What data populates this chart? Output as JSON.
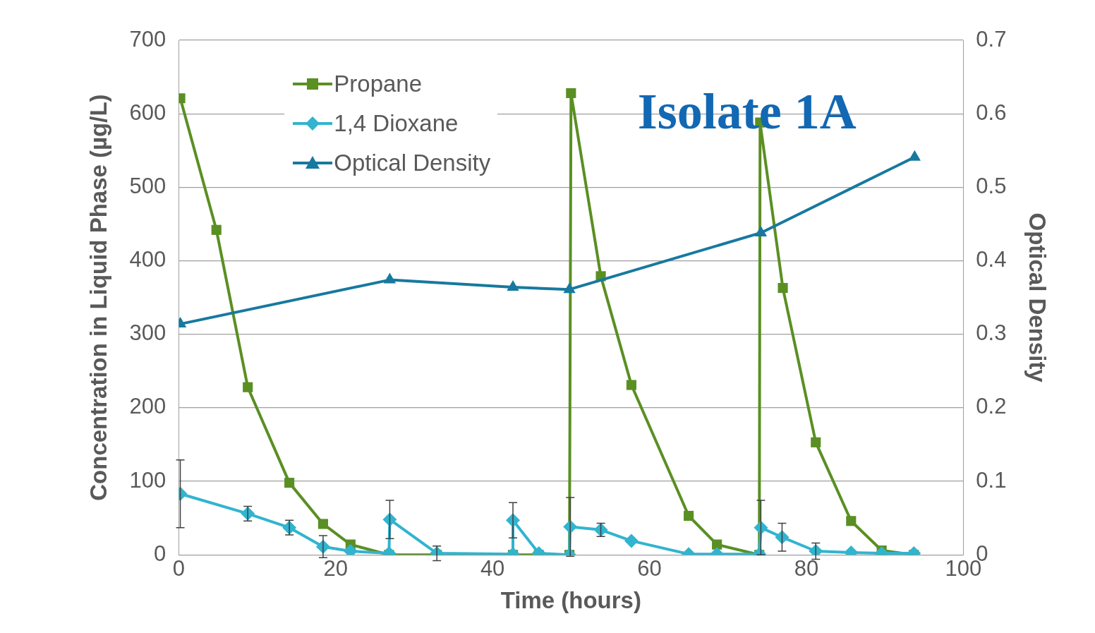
{
  "chart_data": {
    "type": "line",
    "xlabel": "Time (hours)",
    "ylabel": "Concentration in Liquid Phase (µg/L)",
    "y2label": "Optical Density",
    "annotations": [
      "Isolate 1A"
    ],
    "xlim": [
      0,
      100
    ],
    "xticks": [
      0,
      20,
      40,
      60,
      80,
      100
    ],
    "ylim": [
      0,
      700
    ],
    "yticks": [
      0,
      100,
      200,
      300,
      400,
      500,
      600,
      700
    ],
    "y2lim": [
      0,
      0.7
    ],
    "y2ticks": [
      0,
      0.1,
      0.2,
      0.3,
      0.4,
      0.5,
      0.6,
      0.7
    ],
    "grid": "y",
    "legend": "top left",
    "line_style": "solid",
    "series": [
      {
        "name": "Propane",
        "color": "#5a8f23",
        "marker": "square",
        "x": [
          0.2,
          4.8,
          8.8,
          14.1,
          18.4,
          21.9,
          26.8,
          32.9,
          42.6,
          45.9,
          49.8,
          50,
          53.8,
          57.7,
          65,
          68.6,
          74,
          74.1,
          77,
          81.2,
          85.7,
          89.6,
          93.7
        ],
        "values": [
          621,
          442,
          228,
          98,
          42,
          14,
          0,
          0,
          0,
          0,
          0,
          628,
          379,
          231,
          53,
          14,
          0,
          588,
          363,
          153,
          46,
          6,
          0
        ]
      },
      {
        "name": "1,4 Dioxane",
        "color": "#31b4cf",
        "marker": "diamond",
        "x": [
          0.2,
          8.8,
          14.1,
          18.4,
          21.9,
          26.8,
          26.9,
          32.9,
          42.6,
          42.6,
          45.9,
          49.8,
          49.9,
          53.8,
          57.7,
          65,
          68.6,
          74,
          74.2,
          76.9,
          81.2,
          85.7,
          89.6,
          93.7
        ],
        "values": [
          83,
          56,
          37,
          11,
          5,
          2,
          48,
          2,
          1,
          47,
          2,
          0,
          38,
          34,
          19,
          1,
          1,
          1,
          37,
          24,
          5,
          3,
          2,
          2
        ],
        "errors": [
          46,
          10,
          10,
          15,
          null,
          null,
          26,
          10,
          null,
          24,
          null,
          null,
          40,
          9,
          null,
          null,
          null,
          null,
          37,
          19,
          11,
          null,
          null,
          null
        ]
      },
      {
        "name": "Optical Density",
        "color": "#17799f",
        "marker": "triangle",
        "axis": "y2",
        "x": [
          0.2,
          26.9,
          42.6,
          49.8,
          74.2,
          93.8
        ],
        "values": [
          0.314,
          0.374,
          0.364,
          0.361,
          0.438,
          0.541
        ]
      }
    ]
  }
}
